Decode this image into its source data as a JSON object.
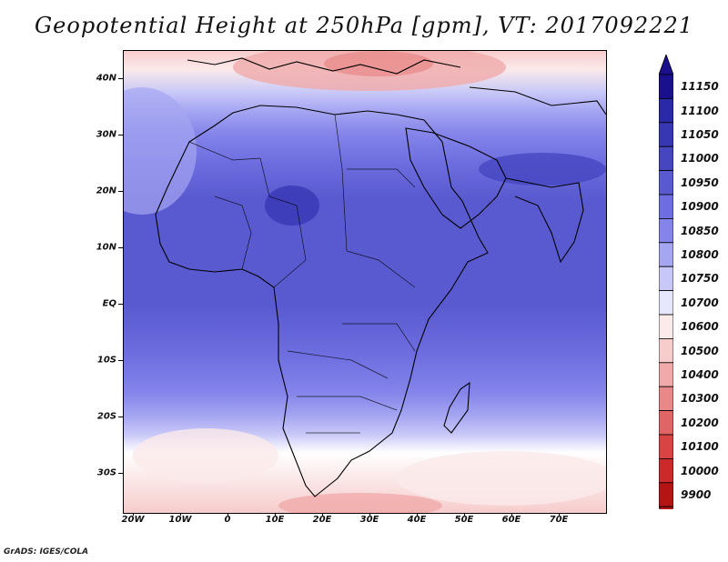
{
  "title": "Geopotential Height at 250hPa [gpm], VT: 2017092221",
  "credit": "GrADS: IGES/COLA",
  "lat_labels": [
    "40N",
    "30N",
    "20N",
    "10N",
    "EQ",
    "10S",
    "20S",
    "30S"
  ],
  "lon_labels": [
    "20W",
    "10W",
    "0",
    "10E",
    "20E",
    "30E",
    "40E",
    "50E",
    "60E",
    "70E"
  ],
  "colorbar": {
    "levels": [
      "11150",
      "11100",
      "11050",
      "11000",
      "10950",
      "10900",
      "10850",
      "10800",
      "10750",
      "10700",
      "10600",
      "10500",
      "10400",
      "10300",
      "10200",
      "10100",
      "10000",
      "9900"
    ],
    "colors": [
      "#1a0f8c",
      "#2a2aa8",
      "#3737b4",
      "#4646c0",
      "#5a5ad0",
      "#6e6ee0",
      "#8484ea",
      "#a5a5f2",
      "#c8c8f8",
      "#e6e6fc",
      "#fbeaea",
      "#f7cccc",
      "#f0aaaa",
      "#e88888",
      "#e06666",
      "#d84444",
      "#cc2a2a",
      "#b41414"
    ]
  },
  "map": {
    "region": "Africa, Arabia and Indian Ocean",
    "lon_range": [
      -22,
      80
    ],
    "lat_range": [
      -37,
      45
    ]
  }
}
